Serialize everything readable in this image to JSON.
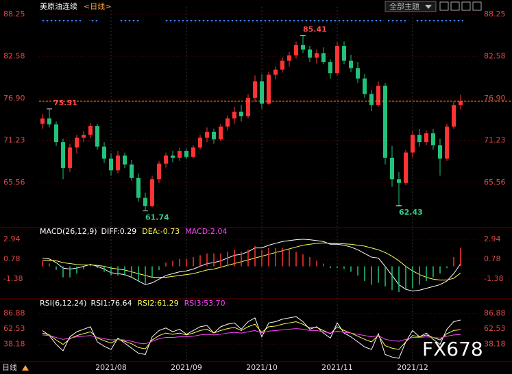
{
  "header": {
    "title": "美原油连续",
    "period": "<日线>",
    "theme": "全部主题"
  },
  "footer": {
    "period": "日线"
  },
  "watermark": "FX678",
  "chart_data": [
    {
      "type": "candlestick",
      "up_color": "#ff3333",
      "down_color": "#22c27a",
      "categories": [
        null,
        null,
        null,
        null,
        null,
        null,
        null,
        null,
        null,
        null,
        "2021/08",
        null,
        null,
        null,
        null,
        null,
        null,
        null,
        null,
        null,
        null,
        "2021/09",
        null,
        null,
        null,
        null,
        null,
        null,
        null,
        null,
        null,
        null,
        "2021/10",
        null,
        null,
        null,
        null,
        null,
        null,
        null,
        null,
        null,
        null,
        "2021/11",
        null,
        null,
        null,
        null,
        null,
        null,
        null,
        null,
        null,
        null,
        "2021/12",
        null,
        null,
        null,
        null,
        null,
        null,
        null
      ],
      "ohlc": [
        [
          73.5,
          74.8,
          72.8,
          74.2
        ],
        [
          74.2,
          75.51,
          73.0,
          73.4
        ],
        [
          73.4,
          73.8,
          70.5,
          71.0
        ],
        [
          71.0,
          71.5,
          66.0,
          67.5
        ],
        [
          67.5,
          70.8,
          67.0,
          70.3
        ],
        [
          70.3,
          72.0,
          69.5,
          71.6
        ],
        [
          71.6,
          72.5,
          71.0,
          72.0
        ],
        [
          72.0,
          73.6,
          71.5,
          73.2
        ],
        [
          73.2,
          73.5,
          70.0,
          70.4
        ],
        [
          70.4,
          71.0,
          68.2,
          68.8
        ],
        [
          68.8,
          69.5,
          66.5,
          67.2
        ],
        [
          67.2,
          69.8,
          66.8,
          69.2
        ],
        [
          69.2,
          69.6,
          67.5,
          68.0
        ],
        [
          68.0,
          68.6,
          65.8,
          66.2
        ],
        [
          66.2,
          66.8,
          63.0,
          63.5
        ],
        [
          63.5,
          64.2,
          61.74,
          62.4
        ],
        [
          62.4,
          66.5,
          62.2,
          66.0
        ],
        [
          66.0,
          68.5,
          65.5,
          68.1
        ],
        [
          68.1,
          69.6,
          67.6,
          69.2
        ],
        [
          69.2,
          69.8,
          68.3,
          68.9
        ],
        [
          68.9,
          70.3,
          68.5,
          69.8
        ],
        [
          69.8,
          70.1,
          68.7,
          69.0
        ],
        [
          69.0,
          70.6,
          68.8,
          70.3
        ],
        [
          70.3,
          72.0,
          70.0,
          71.6
        ],
        [
          71.6,
          73.0,
          71.0,
          72.4
        ],
        [
          72.4,
          72.8,
          70.8,
          71.4
        ],
        [
          71.4,
          73.5,
          71.2,
          73.1
        ],
        [
          73.1,
          74.6,
          72.6,
          74.2
        ],
        [
          74.2,
          75.8,
          73.5,
          75.1
        ],
        [
          75.1,
          76.0,
          73.8,
          74.5
        ],
        [
          74.5,
          77.5,
          74.2,
          77.0
        ],
        [
          77.0,
          80.0,
          76.5,
          79.2
        ],
        [
          79.2,
          80.2,
          75.5,
          76.2
        ],
        [
          76.2,
          80.5,
          76.0,
          80.1
        ],
        [
          80.1,
          81.2,
          79.5,
          80.8
        ],
        [
          80.8,
          82.5,
          80.4,
          82.0
        ],
        [
          82.0,
          83.2,
          81.2,
          82.7
        ],
        [
          82.7,
          84.6,
          82.3,
          84.1
        ],
        [
          84.1,
          85.41,
          83.0,
          83.5
        ],
        [
          83.5,
          84.0,
          81.8,
          82.4
        ],
        [
          82.4,
          83.5,
          81.6,
          83.0
        ],
        [
          83.0,
          83.8,
          81.5,
          81.8
        ],
        [
          81.8,
          82.2,
          79.6,
          80.3
        ],
        [
          80.3,
          84.5,
          80.0,
          84.0
        ],
        [
          84.0,
          84.6,
          81.5,
          82.0
        ],
        [
          82.0,
          82.8,
          80.5,
          81.0
        ],
        [
          81.0,
          81.8,
          79.0,
          79.6
        ],
        [
          79.6,
          80.2,
          77.0,
          77.5
        ],
        [
          77.5,
          78.0,
          75.2,
          76.0
        ],
        [
          76.0,
          79.2,
          75.8,
          78.6
        ],
        [
          78.6,
          79.0,
          68.0,
          68.9
        ],
        [
          68.9,
          70.5,
          65.0,
          66.0
        ],
        [
          66.0,
          67.0,
          62.43,
          65.5
        ],
        [
          65.5,
          70.0,
          65.2,
          69.6
        ],
        [
          69.6,
          72.5,
          69.0,
          72.0
        ],
        [
          72.0,
          72.8,
          70.4,
          71.0
        ],
        [
          71.0,
          72.6,
          70.6,
          72.2
        ],
        [
          72.2,
          72.8,
          70.0,
          70.6
        ],
        [
          70.6,
          71.5,
          66.5,
          68.8
        ],
        [
          68.8,
          73.5,
          68.5,
          73.1
        ],
        [
          73.1,
          76.5,
          72.8,
          76.0
        ],
        [
          76.0,
          77.4,
          75.4,
          76.53
        ]
      ],
      "annotations": [
        75.51,
        85.41,
        61.74,
        62.43
      ],
      "ylim": [
        59.75,
        89.26
      ],
      "yticks": [
        88.25,
        82.58,
        {
          "value": 76.9,
          "label": "76.90"
        },
        71.23,
        65.56
      ]
    },
    {
      "type": "macd",
      "title": "MACD(26,12,9)",
      "up_color": "#ff3333",
      "down_color": "#22c27a",
      "series": [
        {
          "name": "DIFF:0.29",
          "color": "#ffffff",
          "values": [
            0.9,
            0.8,
            0.4,
            -0.2,
            -0.3,
            -0.2,
            0.0,
            0.2,
            0.0,
            -0.3,
            -0.7,
            -0.8,
            -0.9,
            -1.2,
            -1.6,
            -2.0,
            -1.8,
            -1.4,
            -1.0,
            -0.8,
            -0.6,
            -0.5,
            -0.3,
            0.0,
            0.3,
            0.4,
            0.6,
            0.9,
            1.2,
            1.3,
            1.6,
            2.0,
            2.0,
            2.3,
            2.5,
            2.7,
            2.8,
            2.9,
            2.95,
            2.9,
            2.8,
            2.7,
            2.4,
            2.4,
            2.3,
            2.1,
            1.8,
            1.4,
            1.0,
            0.9,
            0.0,
            -1.0,
            -2.0,
            -2.5,
            -2.7,
            -2.6,
            -2.4,
            -2.2,
            -2.0,
            -1.6,
            -0.8,
            0.29
          ]
        },
        {
          "name": "DEA:-0.73",
          "color": "#ffff55",
          "values": [
            0.6,
            0.65,
            0.6,
            0.4,
            0.3,
            0.2,
            0.15,
            0.15,
            0.1,
            0.0,
            -0.2,
            -0.3,
            -0.4,
            -0.6,
            -0.8,
            -1.0,
            -1.2,
            -1.2,
            -1.2,
            -1.1,
            -1.0,
            -0.9,
            -0.8,
            -0.6,
            -0.4,
            -0.3,
            -0.1,
            0.1,
            0.3,
            0.5,
            0.7,
            0.9,
            1.1,
            1.3,
            1.5,
            1.7,
            1.9,
            2.1,
            2.3,
            2.4,
            2.5,
            2.55,
            2.5,
            2.5,
            2.45,
            2.4,
            2.3,
            2.2,
            2.0,
            1.8,
            1.5,
            1.1,
            0.6,
            0.0,
            -0.5,
            -0.9,
            -1.2,
            -1.4,
            -1.5,
            -1.5,
            -1.3,
            -0.73
          ]
        },
        {
          "name": "MACD:2.04",
          "color": "#ff44ff",
          "histogram": true,
          "values": [
            0.6,
            0.3,
            -0.4,
            -1.2,
            -1.2,
            -0.8,
            -0.3,
            0.1,
            -0.2,
            -0.6,
            -1.0,
            -1.0,
            -1.0,
            -1.2,
            -1.6,
            -2.0,
            -1.2,
            -0.4,
            0.4,
            0.6,
            0.8,
            0.8,
            1.0,
            1.2,
            1.4,
            1.4,
            1.4,
            1.6,
            1.8,
            1.6,
            1.8,
            2.2,
            1.8,
            2.0,
            2.0,
            2.0,
            1.8,
            1.6,
            1.3,
            1.0,
            0.6,
            0.3,
            -0.2,
            -0.2,
            -0.3,
            -0.6,
            -1.0,
            -1.6,
            -2.0,
            -1.8,
            -2.2,
            -2.6,
            -2.8,
            -2.6,
            -2.4,
            -2.0,
            -1.6,
            -1.2,
            -0.8,
            -0.2,
            1.0,
            2.04
          ]
        }
      ],
      "ylim": [
        -3.39,
        4.06
      ],
      "yticks": [
        2.94,
        0.78,
        -1.38
      ]
    },
    {
      "type": "line",
      "title": "RSI(6,12,24)",
      "series": [
        {
          "name": "RSI1:76.64",
          "color": "#ffffff",
          "values": [
            60,
            52,
            38,
            28,
            50,
            58,
            62,
            66,
            42,
            35,
            30,
            48,
            40,
            32,
            24,
            22,
            50,
            60,
            64,
            58,
            62,
            54,
            60,
            66,
            68,
            56,
            66,
            70,
            72,
            62,
            74,
            80,
            50,
            72,
            74,
            78,
            80,
            82,
            74,
            62,
            66,
            56,
            48,
            72,
            56,
            50,
            42,
            34,
            30,
            55,
            22,
            18,
            16,
            42,
            60,
            50,
            56,
            46,
            38,
            62,
            74,
            76.64
          ]
        },
        {
          "name": "RSI2:61.29",
          "color": "#ffff55",
          "values": [
            56,
            53,
            45,
            38,
            47,
            52,
            55,
            58,
            48,
            44,
            40,
            46,
            43,
            39,
            33,
            31,
            45,
            52,
            56,
            54,
            56,
            53,
            56,
            60,
            62,
            56,
            60,
            63,
            65,
            60,
            66,
            70,
            57,
            66,
            67,
            70,
            72,
            74,
            70,
            64,
            65,
            60,
            55,
            66,
            60,
            56,
            51,
            46,
            42,
            52,
            36,
            32,
            30,
            42,
            52,
            50,
            53,
            49,
            45,
            55,
            60,
            61.29
          ]
        },
        {
          "name": "RSI3:53.70",
          "color": "#ff44ff",
          "values": [
            53,
            52,
            49,
            46,
            48,
            50,
            51,
            52,
            49,
            47,
            45,
            46,
            45,
            43,
            40,
            39,
            43,
            47,
            49,
            49,
            50,
            50,
            51,
            53,
            54,
            53,
            54,
            56,
            57,
            56,
            58,
            60,
            56,
            59,
            60,
            61,
            62,
            63,
            62,
            60,
            60,
            58,
            56,
            59,
            57,
            56,
            54,
            52,
            50,
            52,
            46,
            44,
            43,
            46,
            49,
            49,
            50,
            49,
            48,
            51,
            53,
            53.7
          ]
        }
      ],
      "ylim": [
        11.7,
        107
      ],
      "yticks": [
        86.88,
        62.53,
        38.18
      ]
    }
  ]
}
